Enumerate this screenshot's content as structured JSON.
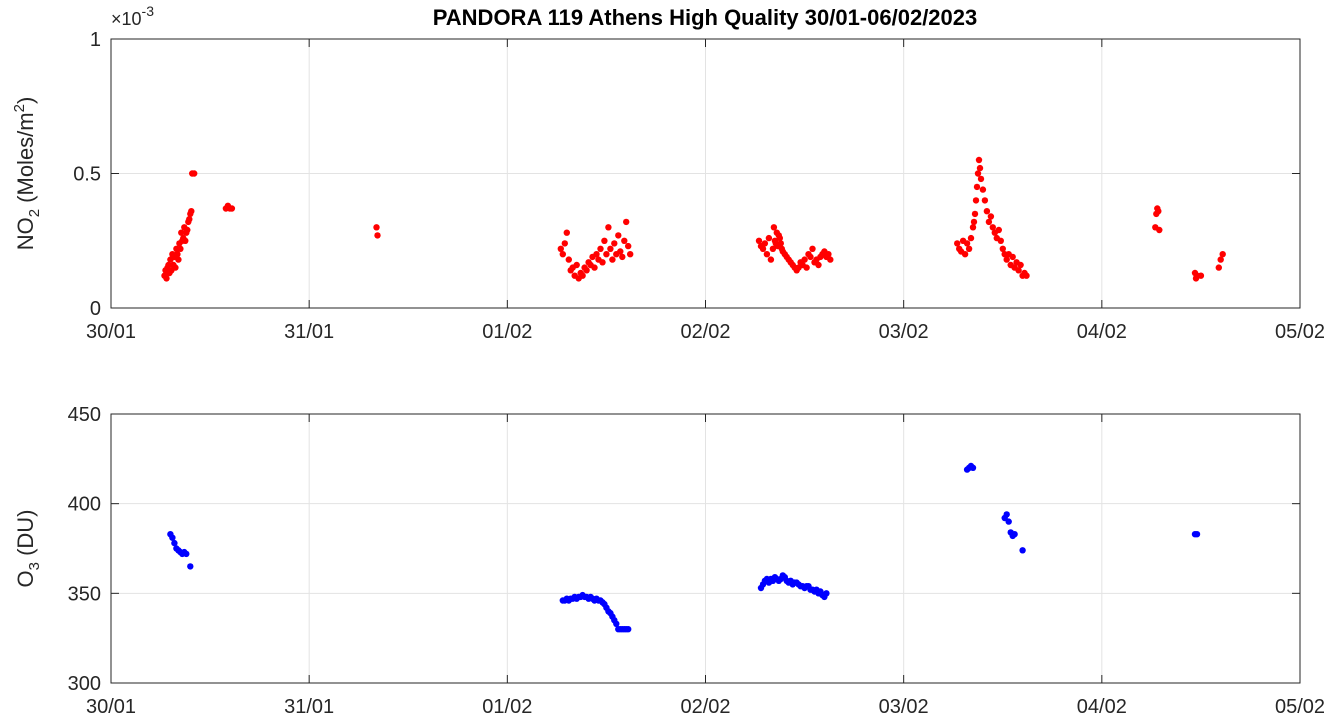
{
  "title": "PANDORA 119 Athens High Quality 30/01-06/02/2023",
  "chart_data": [
    {
      "type": "scatter",
      "ylabel_base": "NO",
      "ylabel_sub": "2",
      "ylabel_units": " (Moles/m",
      "ylabel_sup": "2",
      "ylabel_close": ")",
      "exponent_label_times": "×10",
      "exponent_label_power": "-3",
      "x_tick_labels": [
        "30/01",
        "31/01",
        "01/02",
        "02/02",
        "03/02",
        "04/02",
        "05/02"
      ],
      "xlim_days": [
        0,
        6
      ],
      "y_tick_labels": [
        "0",
        "0.5",
        "1"
      ],
      "y_ticks": [
        0,
        0.5,
        1
      ],
      "ylim": [
        0,
        1
      ],
      "grid": true,
      "color": "#ff0000",
      "series": [
        {
          "x": [
            0.27,
            0.275,
            0.28,
            0.285,
            0.29,
            0.295,
            0.3,
            0.305,
            0.31,
            0.315,
            0.32,
            0.325,
            0.33,
            0.335,
            0.34,
            0.345,
            0.35,
            0.355,
            0.36,
            0.365,
            0.37,
            0.375,
            0.38,
            0.385,
            0.39,
            0.395,
            0.4,
            0.405,
            0.41,
            0.42,
            0.58,
            0.59,
            0.6,
            0.61,
            1.34,
            1.345,
            2.27,
            2.28,
            2.29,
            2.3,
            2.31,
            2.32,
            2.33,
            2.34,
            2.35,
            2.36,
            2.37,
            2.38,
            2.39,
            2.4,
            2.41,
            2.42,
            2.43,
            2.44,
            2.45,
            2.46,
            2.47,
            2.48,
            2.49,
            2.5,
            2.51,
            2.52,
            2.53,
            2.54,
            2.55,
            2.56,
            2.57,
            2.58,
            2.59,
            2.6,
            2.61,
            2.62,
            3.27,
            3.28,
            3.29,
            3.3,
            3.31,
            3.32,
            3.33,
            3.34,
            3.345,
            3.35,
            3.355,
            3.36,
            3.365,
            3.37,
            3.375,
            3.38,
            3.385,
            3.39,
            3.4,
            3.41,
            3.42,
            3.43,
            3.44,
            3.45,
            3.46,
            3.47,
            3.48,
            3.49,
            3.5,
            3.51,
            3.52,
            3.53,
            3.54,
            3.55,
            3.56,
            3.57,
            3.58,
            3.59,
            3.6,
            3.61,
            3.62,
            3.63,
            4.27,
            4.28,
            4.29,
            4.3,
            4.31,
            4.32,
            4.33,
            4.34,
            4.35,
            4.355,
            4.36,
            4.365,
            4.37,
            4.375,
            4.38,
            4.385,
            4.39,
            4.4,
            4.41,
            4.42,
            4.43,
            4.44,
            4.45,
            4.46,
            4.47,
            4.48,
            4.49,
            4.5,
            4.51,
            4.52,
            4.53,
            4.54,
            4.55,
            4.56,
            4.57,
            4.58,
            4.59,
            4.6,
            4.61,
            4.62,
            5.27,
            5.275,
            5.28,
            5.285,
            5.29,
            5.47,
            5.475,
            5.48,
            5.5,
            5.59,
            5.6,
            5.61
          ],
          "y": [
            0.12,
            0.14,
            0.11,
            0.15,
            0.16,
            0.13,
            0.18,
            0.14,
            0.2,
            0.16,
            0.19,
            0.15,
            0.22,
            0.2,
            0.18,
            0.24,
            0.22,
            0.28,
            0.25,
            0.26,
            0.3,
            0.25,
            0.28,
            0.29,
            0.32,
            0.33,
            0.35,
            0.36,
            0.5,
            0.5,
            0.37,
            0.38,
            0.37,
            0.37,
            0.3,
            0.27,
            0.22,
            0.2,
            0.24,
            0.28,
            0.18,
            0.14,
            0.15,
            0.12,
            0.16,
            0.11,
            0.13,
            0.12,
            0.15,
            0.14,
            0.17,
            0.16,
            0.19,
            0.15,
            0.2,
            0.18,
            0.22,
            0.17,
            0.25,
            0.2,
            0.3,
            0.22,
            0.18,
            0.24,
            0.2,
            0.27,
            0.21,
            0.19,
            0.25,
            0.32,
            0.23,
            0.2,
            0.25,
            0.23,
            0.22,
            0.24,
            0.2,
            0.26,
            0.18,
            0.22,
            0.3,
            0.25,
            0.24,
            0.28,
            0.23,
            0.27,
            0.26,
            0.24,
            0.22,
            0.21,
            0.2,
            0.19,
            0.18,
            0.17,
            0.16,
            0.15,
            0.14,
            0.15,
            0.17,
            0.16,
            0.18,
            0.15,
            0.2,
            0.19,
            0.22,
            0.17,
            0.18,
            0.16,
            0.19,
            0.2,
            0.21,
            0.19,
            0.2,
            0.18,
            0.24,
            0.22,
            0.21,
            0.25,
            0.2,
            0.24,
            0.22,
            0.26,
            0.3,
            0.32,
            0.35,
            0.4,
            0.45,
            0.5,
            0.55,
            0.52,
            0.48,
            0.44,
            0.4,
            0.36,
            0.32,
            0.34,
            0.3,
            0.28,
            0.26,
            0.29,
            0.25,
            0.22,
            0.2,
            0.18,
            0.2,
            0.16,
            0.19,
            0.15,
            0.17,
            0.14,
            0.16,
            0.12,
            0.13,
            0.12,
            0.3,
            0.35,
            0.37,
            0.36,
            0.29,
            0.13,
            0.11,
            0.12,
            0.12,
            0.15,
            0.18,
            0.2
          ]
        }
      ]
    },
    {
      "type": "scatter",
      "ylabel_base": "O",
      "ylabel_sub": "3",
      "ylabel_units": " (DU)",
      "x_tick_labels": [
        "30/01",
        "31/01",
        "01/02",
        "02/02",
        "03/02",
        "04/02",
        "05/02"
      ],
      "xlim_days": [
        0,
        6
      ],
      "y_tick_labels": [
        "300",
        "350",
        "400",
        "450"
      ],
      "y_ticks": [
        300,
        350,
        400,
        450
      ],
      "ylim": [
        300,
        450
      ],
      "grid": true,
      "color": "#0000ff",
      "series": [
        {
          "x": [
            0.3,
            0.31,
            0.32,
            0.33,
            0.34,
            0.35,
            0.36,
            0.37,
            0.38,
            0.4,
            2.28,
            2.29,
            2.3,
            2.31,
            2.32,
            2.33,
            2.34,
            2.35,
            2.36,
            2.37,
            2.38,
            2.39,
            2.4,
            2.41,
            2.42,
            2.43,
            2.44,
            2.45,
            2.46,
            2.47,
            2.48,
            2.49,
            2.5,
            2.51,
            2.52,
            2.53,
            2.54,
            2.55,
            2.56,
            2.57,
            2.58,
            2.59,
            2.6,
            2.61,
            3.28,
            3.29,
            3.3,
            3.31,
            3.32,
            3.33,
            3.34,
            3.35,
            3.36,
            3.37,
            3.38,
            3.39,
            3.4,
            3.41,
            3.42,
            3.43,
            3.44,
            3.45,
            3.46,
            3.47,
            3.48,
            3.49,
            3.5,
            3.51,
            3.52,
            3.53,
            3.54,
            3.55,
            3.56,
            3.57,
            3.58,
            3.59,
            3.6,
            3.61,
            4.32,
            4.33,
            4.34,
            4.35,
            4.51,
            4.52,
            4.53,
            4.54,
            4.55,
            4.56,
            4.6,
            5.47,
            5.48
          ],
          "y": [
            383,
            381,
            378,
            375,
            374,
            373,
            372,
            373,
            372,
            365,
            346,
            346,
            347,
            346,
            347,
            347,
            348,
            347,
            348,
            348,
            349,
            348,
            348,
            347,
            348,
            347,
            346,
            347,
            346,
            346,
            345,
            344,
            342,
            340,
            339,
            337,
            335,
            333,
            330,
            330,
            330,
            330,
            330,
            330,
            353,
            355,
            357,
            358,
            356,
            358,
            357,
            359,
            358,
            357,
            358,
            360,
            359,
            357,
            356,
            357,
            355,
            356,
            356,
            355,
            354,
            354,
            353,
            354,
            354,
            352,
            352,
            351,
            352,
            350,
            351,
            349,
            348,
            350,
            419,
            420,
            421,
            420,
            392,
            394,
            390,
            384,
            382,
            383,
            374,
            383,
            383
          ]
        }
      ]
    }
  ]
}
